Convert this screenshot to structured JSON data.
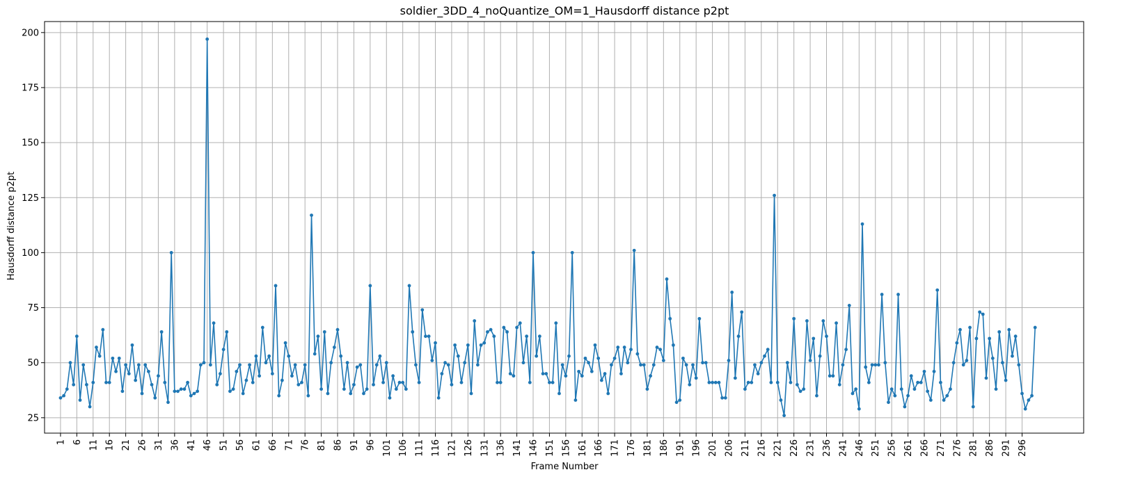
{
  "chart_data": {
    "type": "line",
    "title": "soldier_3DD_4_noQuantize_OM=1_Hausdorff distance p2pt",
    "xlabel": "Frame Number",
    "ylabel": "Hausdorff distance p2pt",
    "xlim": [
      -3.9,
      314.9
    ],
    "ylim": [
      18,
      205
    ],
    "y_ticks": [
      25,
      50,
      75,
      100,
      125,
      150,
      175,
      200
    ],
    "x_ticks": [
      1,
      6,
      11,
      16,
      21,
      26,
      31,
      36,
      41,
      46,
      51,
      56,
      61,
      66,
      71,
      76,
      81,
      86,
      91,
      96,
      101,
      106,
      111,
      116,
      121,
      126,
      131,
      136,
      141,
      146,
      151,
      156,
      161,
      166,
      171,
      176,
      181,
      186,
      191,
      196,
      201,
      206,
      211,
      216,
      221,
      226,
      231,
      236,
      241,
      246,
      251,
      256,
      261,
      266,
      271,
      276,
      281,
      286,
      291,
      296
    ],
    "grid": true,
    "line_color": "#1f77b4",
    "series": [
      {
        "x_start": 1,
        "x_step": 1,
        "values": [
          34,
          35,
          38,
          50,
          40,
          62,
          33,
          49,
          40,
          30,
          41,
          57,
          53,
          65,
          41,
          41,
          52,
          46,
          52,
          37,
          49,
          45,
          58,
          42,
          49,
          36,
          49,
          46,
          40,
          34,
          44,
          64,
          41,
          32,
          100,
          37,
          37,
          38,
          38,
          41,
          35,
          36,
          37,
          49,
          50,
          197,
          49,
          68,
          40,
          45,
          56,
          64,
          37,
          38,
          46,
          49,
          36,
          42,
          49,
          41,
          53,
          44,
          66,
          50,
          53,
          45,
          85,
          35,
          42,
          59,
          53,
          44,
          49,
          40,
          41,
          49,
          35,
          117,
          54,
          62,
          38,
          64,
          36,
          50,
          57,
          65,
          53,
          38,
          50,
          36,
          40,
          48,
          49,
          36,
          38,
          85,
          40,
          49,
          53,
          41,
          50,
          34,
          44,
          38,
          41,
          41,
          38,
          85,
          64,
          49,
          41,
          74,
          62,
          62,
          51,
          59,
          34,
          45,
          50,
          49,
          40,
          58,
          53,
          41,
          50,
          58,
          36,
          69,
          49,
          58,
          59,
          64,
          65,
          62,
          41,
          41,
          66,
          64,
          45,
          44,
          66,
          68,
          50,
          62,
          41,
          100,
          53,
          62,
          45,
          45,
          41,
          41,
          68,
          36,
          49,
          44,
          53,
          100,
          33,
          46,
          44,
          52,
          50,
          46,
          58,
          52,
          42,
          45,
          36,
          49,
          52,
          57,
          45,
          57,
          50,
          56,
          101,
          54,
          49,
          49,
          38,
          44,
          49,
          57,
          56,
          51,
          88,
          70,
          58,
          32,
          33,
          52,
          49,
          40,
          49,
          43,
          70,
          50,
          50,
          41,
          41,
          41,
          41,
          34,
          34,
          51,
          82,
          43,
          62,
          73,
          38,
          41,
          41,
          49,
          45,
          50,
          53,
          56,
          41,
          126,
          41,
          33,
          26,
          50,
          41,
          70,
          40,
          37,
          38,
          69,
          51,
          61,
          35,
          53,
          69,
          62,
          44,
          44,
          68,
          40,
          49,
          56,
          76,
          36,
          38,
          29,
          113,
          48,
          41,
          49,
          49,
          49,
          81,
          50,
          32,
          38,
          35,
          81,
          38,
          30,
          35,
          44,
          38,
          41,
          41,
          46,
          37,
          33,
          46,
          83,
          41,
          33,
          35,
          38,
          50,
          59,
          65,
          49,
          51,
          66,
          30,
          61,
          73,
          72,
          43,
          61,
          52,
          38,
          64,
          50,
          42,
          65,
          53,
          62,
          49,
          36,
          29,
          33,
          35,
          66
        ]
      }
    ]
  }
}
